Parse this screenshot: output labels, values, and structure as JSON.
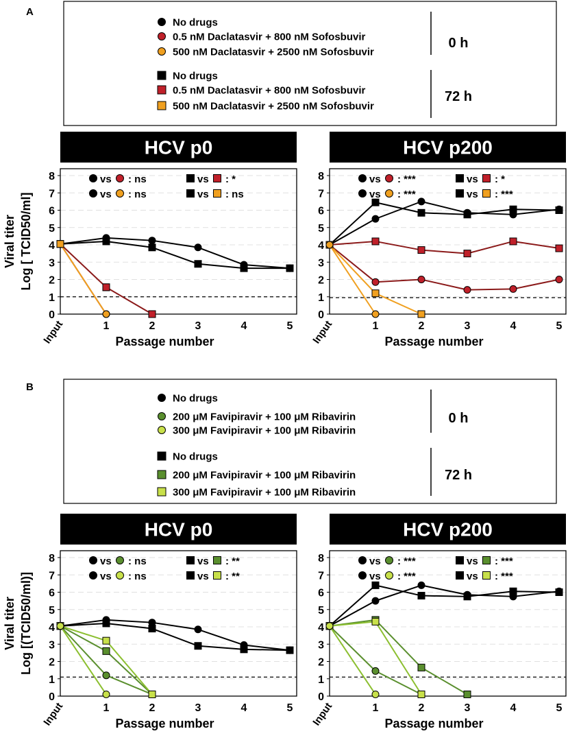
{
  "panels": [
    {
      "letter": "A",
      "legend": {
        "time_0h": "0 h",
        "time_72h": "72 h",
        "entries_0h": [
          {
            "marker": "circle",
            "color": "#000000",
            "label": "No drugs"
          },
          {
            "marker": "circle",
            "color": "#c0202a",
            "label": "0.5 nM Daclatasvir + 800 nM Sofosbuvir"
          },
          {
            "marker": "circle",
            "color": "#f0a020",
            "label": "500 nM Daclatasvir + 2500 nM Sofosbuvir"
          }
        ],
        "entries_72h": [
          {
            "marker": "square",
            "color": "#000000",
            "label": "No drugs"
          },
          {
            "marker": "square",
            "color": "#c0202a",
            "label": "0.5 nM Daclatasvir + 800 nM Sofosbuvir"
          },
          {
            "marker": "square",
            "color": "#f0a020",
            "label": "500 nM Daclatasvir + 2500 nM Sofosbuvir"
          }
        ]
      }
    },
    {
      "letter": "B",
      "legend": {
        "time_0h": "0 h",
        "time_72h": "72 h",
        "entries_0h": [
          {
            "marker": "circle",
            "color": "#000000",
            "label": "No drugs"
          },
          {
            "marker": "circle",
            "color": "#5a8f2e",
            "label": "200 μM Favipiravir + 100 μM Ribavirin"
          },
          {
            "marker": "circle",
            "color": "#c8e04a",
            "label": "300 μM Favipiravir + 100 μM Ribavirin"
          }
        ],
        "entries_72h": [
          {
            "marker": "square",
            "color": "#000000",
            "label": "No drugs"
          },
          {
            "marker": "square",
            "color": "#5a8f2e",
            "label": "200 μM Favipiravir + 100 μM Ribavirin"
          },
          {
            "marker": "square",
            "color": "#c8e04a",
            "label": "300 μM Favipiravir + 100 μM Ribavirin"
          }
        ]
      }
    }
  ],
  "chart_data": [
    {
      "type": "line",
      "title": "HCV p0",
      "xlabel": "Passage number",
      "ylabel_line1": "Viral titer",
      "ylabel_line2": "Log [ TCID50/ml]",
      "x": [
        "Input",
        "1",
        "2",
        "3",
        "4",
        "5"
      ],
      "ylim": [
        0,
        8
      ],
      "yticks": [
        0,
        1,
        2,
        3,
        4,
        5,
        6,
        7,
        8
      ],
      "threshold": 1,
      "stats": [
        {
          "marker": "circle",
          "a": "#000000",
          "b": "#c0202a",
          "vs": "vs",
          "result": ": ns"
        },
        {
          "marker": "circle",
          "a": "#000000",
          "b": "#f0a020",
          "vs": "vs",
          "result": ": ns"
        },
        {
          "marker": "square",
          "a": "#000000",
          "b": "#c0202a",
          "vs": "vs",
          "result": ": *"
        },
        {
          "marker": "square",
          "a": "#000000",
          "b": "#f0a020",
          "vs": "vs",
          "result": ": ns"
        }
      ],
      "series": [
        {
          "name": "No drugs 0 h",
          "marker": "circle",
          "color": "#000000",
          "values": [
            4.05,
            4.4,
            4.25,
            3.85,
            2.85,
            2.65
          ]
        },
        {
          "name": "No drugs 72 h",
          "marker": "square",
          "color": "#000000",
          "values": [
            4.05,
            4.2,
            3.85,
            2.9,
            2.65,
            2.65
          ]
        },
        {
          "name": "0.5 nM Daclatasvir + 800 nM Sofosbuvir 72 h",
          "marker": "square",
          "color": "#c0202a",
          "line": "#8b1a1a",
          "values": [
            4.05,
            1.55,
            null,
            null,
            null,
            null
          ]
        },
        {
          "name": "0.5 nM Daclatasvir + 800 nM Sofosbuvir 0 h",
          "marker": "circle",
          "color": "#c0202a",
          "line": "#8b1a1a",
          "values": [
            4.05,
            0,
            null,
            null,
            null,
            null
          ]
        },
        {
          "name": "0.5 nM Daclatasvir + 800 nM Sofosbuvir 72 h (to 2)",
          "marker": "square",
          "color": "#c0202a",
          "line": "#8b1a1a",
          "values": [
            null,
            1.55,
            0,
            null,
            null,
            null
          ]
        },
        {
          "name": "500 nM Daclatasvir + 2500 nM Sofosbuvir 0 h",
          "marker": "circle",
          "color": "#f0a020",
          "line": "#f0a020",
          "values": [
            4.05,
            0,
            null,
            null,
            null,
            null
          ]
        },
        {
          "name": "500 nM Daclatasvir + 2500 nM Sofosbuvir 72 h",
          "marker": "square",
          "color": "#f0a020",
          "line": "#f0a020",
          "values": [
            4.05,
            null,
            null,
            null,
            null,
            null
          ]
        }
      ]
    },
    {
      "type": "line",
      "title": "HCV p200",
      "xlabel": "Passage number",
      "x": [
        "Input",
        "1",
        "2",
        "3",
        "4",
        "5"
      ],
      "ylim": [
        0,
        8
      ],
      "yticks": [
        0,
        1,
        2,
        3,
        4,
        5,
        6,
        7,
        8
      ],
      "threshold": 0.95,
      "stats": [
        {
          "marker": "circle",
          "a": "#000000",
          "b": "#c0202a",
          "vs": "vs",
          "result": ": ***"
        },
        {
          "marker": "circle",
          "a": "#000000",
          "b": "#f0a020",
          "vs": "vs",
          "result": ": ***"
        },
        {
          "marker": "square",
          "a": "#000000",
          "b": "#c0202a",
          "vs": "vs",
          "result": ": *"
        },
        {
          "marker": "square",
          "a": "#000000",
          "b": "#f0a020",
          "vs": "vs",
          "result": ": ***"
        }
      ],
      "series": [
        {
          "name": "No drugs 0 h",
          "marker": "circle",
          "color": "#000000",
          "values": [
            4.0,
            5.5,
            6.5,
            5.85,
            5.75,
            6.05
          ]
        },
        {
          "name": "No drugs 72 h",
          "marker": "square",
          "color": "#000000",
          "values": [
            4.0,
            6.45,
            5.85,
            5.75,
            6.05,
            6.0
          ]
        },
        {
          "name": "0.5 nM Daclatasvir + 800 nM Sofosbuvir 72 h",
          "marker": "square",
          "color": "#c0202a",
          "line": "#8b1a1a",
          "values": [
            4.0,
            4.2,
            3.7,
            3.5,
            4.2,
            3.8
          ]
        },
        {
          "name": "0.5 nM Daclatasvir + 800 nM Sofosbuvir 0 h",
          "marker": "circle",
          "color": "#c0202a",
          "line": "#8b1a1a",
          "values": [
            4.0,
            1.85,
            2.0,
            1.4,
            1.45,
            2.0
          ]
        },
        {
          "name": "500 nM Daclatasvir + 2500 nM Sofosbuvir 72 h",
          "marker": "square",
          "color": "#f0a020",
          "line": "#f0a020",
          "values": [
            4.0,
            1.2,
            0,
            null,
            null,
            null
          ]
        },
        {
          "name": "500 nM Daclatasvir + 2500 nM Sofosbuvir 0 h",
          "marker": "circle",
          "color": "#f0a020",
          "line": "#f0a020",
          "values": [
            4.0,
            0,
            null,
            null,
            null,
            null
          ]
        }
      ]
    },
    {
      "type": "line",
      "title": "HCV p0",
      "xlabel": "Passage number",
      "ylabel_line1": "Viral titer",
      "ylabel_line2": "Log [(TCID50/ml)]",
      "x": [
        "Input",
        "1",
        "2",
        "3",
        "4",
        "5"
      ],
      "ylim": [
        0,
        8
      ],
      "yticks": [
        0,
        1,
        2,
        3,
        4,
        5,
        6,
        7,
        8
      ],
      "threshold": 1.1,
      "stats": [
        {
          "marker": "circle",
          "a": "#000000",
          "b": "#5a8f2e",
          "vs": "vs",
          "result": ": ns"
        },
        {
          "marker": "circle",
          "a": "#000000",
          "b": "#c8e04a",
          "vs": "vs",
          "result": ": ns"
        },
        {
          "marker": "square",
          "a": "#000000",
          "b": "#5a8f2e",
          "vs": "vs",
          "result": ": **"
        },
        {
          "marker": "square",
          "a": "#000000",
          "b": "#c8e04a",
          "vs": "vs",
          "result": ": **"
        }
      ],
      "series": [
        {
          "name": "No drugs 0 h",
          "marker": "circle",
          "color": "#000000",
          "values": [
            4.05,
            4.4,
            4.25,
            3.85,
            2.95,
            2.65
          ]
        },
        {
          "name": "No drugs 72 h",
          "marker": "square",
          "color": "#000000",
          "values": [
            4.05,
            4.2,
            3.9,
            2.9,
            2.7,
            2.65
          ]
        },
        {
          "name": "200 μM Favipiravir + 100 μM Ribavirin 72 h",
          "marker": "square",
          "color": "#5a8f2e",
          "line": "#5a8f2e",
          "values": [
            4.05,
            2.6,
            0.1,
            null,
            null,
            null
          ]
        },
        {
          "name": "200 μM Favipiravir + 100 μM Ribavirin 0 h",
          "marker": "circle",
          "color": "#5a8f2e",
          "line": "#5a8f2e",
          "values": [
            4.05,
            1.2,
            0.1,
            null,
            null,
            null
          ]
        },
        {
          "name": "300 μM Favipiravir + 100 μM Ribavirin 72 h",
          "marker": "square",
          "color": "#c8e04a",
          "line": "#8cbf30",
          "values": [
            4.05,
            3.2,
            0.1,
            null,
            null,
            null
          ]
        },
        {
          "name": "300 μM Favipiravir + 100 μM Ribavirin 0 h",
          "marker": "circle",
          "color": "#c8e04a",
          "line": "#8cbf30",
          "values": [
            4.05,
            0.1,
            null,
            null,
            null,
            null
          ]
        }
      ]
    },
    {
      "type": "line",
      "title": "HCV p200",
      "xlabel": "Passage number",
      "x": [
        "Input",
        "1",
        "2",
        "3",
        "4",
        "5"
      ],
      "ylim": [
        0,
        8
      ],
      "yticks": [
        0,
        1,
        2,
        3,
        4,
        5,
        6,
        7,
        8
      ],
      "threshold": 1.1,
      "stats": [
        {
          "marker": "circle",
          "a": "#000000",
          "b": "#5a8f2e",
          "vs": "vs",
          "result": ": ***"
        },
        {
          "marker": "circle",
          "a": "#000000",
          "b": "#c8e04a",
          "vs": "vs",
          "result": ": ***"
        },
        {
          "marker": "square",
          "a": "#000000",
          "b": "#5a8f2e",
          "vs": "vs",
          "result": ": ***"
        },
        {
          "marker": "square",
          "a": "#000000",
          "b": "#c8e04a",
          "vs": "vs",
          "result": ": ***"
        }
      ],
      "series": [
        {
          "name": "No drugs 0 h",
          "marker": "circle",
          "color": "#000000",
          "values": [
            4.05,
            5.5,
            6.4,
            5.85,
            5.75,
            6.05
          ]
        },
        {
          "name": "No drugs 72 h",
          "marker": "square",
          "color": "#000000",
          "values": [
            4.05,
            6.4,
            5.8,
            5.75,
            6.05,
            6.0
          ]
        },
        {
          "name": "200 μM Favipiravir + 100 μM Ribavirin 72 h",
          "marker": "square",
          "color": "#5a8f2e",
          "line": "#5a8f2e",
          "values": [
            4.05,
            4.4,
            1.65,
            0.1,
            null,
            null
          ]
        },
        {
          "name": "200 μM Favipiravir + 100 μM Ribavirin 0 h",
          "marker": "circle",
          "color": "#5a8f2e",
          "line": "#5a8f2e",
          "values": [
            4.05,
            1.45,
            0.1,
            null,
            null,
            null
          ]
        },
        {
          "name": "300 μM Favipiravir + 100 μM Ribavirin 72 h",
          "marker": "square",
          "color": "#c8e04a",
          "line": "#8cbf30",
          "values": [
            4.05,
            4.3,
            0.1,
            null,
            null,
            null
          ]
        },
        {
          "name": "300 μM Favipiravir + 100 μM Ribavirin 0 h",
          "marker": "circle",
          "color": "#c8e04a",
          "line": "#8cbf30",
          "values": [
            4.05,
            0.1,
            null,
            null,
            null,
            null
          ]
        }
      ]
    }
  ]
}
